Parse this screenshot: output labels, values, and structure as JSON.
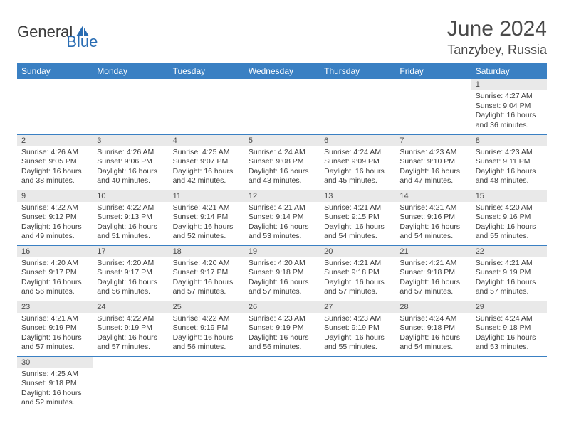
{
  "brand": {
    "general": "General",
    "blue": "Blue"
  },
  "title": {
    "month": "June 2024",
    "location": "Tanzybey, Russia"
  },
  "colors": {
    "header_bg": "#3a80c3",
    "rule": "#3a80c3",
    "daynum_bg": "#e9e9e9"
  },
  "headers": [
    "Sunday",
    "Monday",
    "Tuesday",
    "Wednesday",
    "Thursday",
    "Friday",
    "Saturday"
  ],
  "weeks": [
    [
      null,
      null,
      null,
      null,
      null,
      null,
      {
        "n": "1",
        "sr": "Sunrise: 4:27 AM",
        "ss": "Sunset: 9:04 PM",
        "dl": "Daylight: 16 hours and 36 minutes."
      }
    ],
    [
      {
        "n": "2",
        "sr": "Sunrise: 4:26 AM",
        "ss": "Sunset: 9:05 PM",
        "dl": "Daylight: 16 hours and 38 minutes."
      },
      {
        "n": "3",
        "sr": "Sunrise: 4:26 AM",
        "ss": "Sunset: 9:06 PM",
        "dl": "Daylight: 16 hours and 40 minutes."
      },
      {
        "n": "4",
        "sr": "Sunrise: 4:25 AM",
        "ss": "Sunset: 9:07 PM",
        "dl": "Daylight: 16 hours and 42 minutes."
      },
      {
        "n": "5",
        "sr": "Sunrise: 4:24 AM",
        "ss": "Sunset: 9:08 PM",
        "dl": "Daylight: 16 hours and 43 minutes."
      },
      {
        "n": "6",
        "sr": "Sunrise: 4:24 AM",
        "ss": "Sunset: 9:09 PM",
        "dl": "Daylight: 16 hours and 45 minutes."
      },
      {
        "n": "7",
        "sr": "Sunrise: 4:23 AM",
        "ss": "Sunset: 9:10 PM",
        "dl": "Daylight: 16 hours and 47 minutes."
      },
      {
        "n": "8",
        "sr": "Sunrise: 4:23 AM",
        "ss": "Sunset: 9:11 PM",
        "dl": "Daylight: 16 hours and 48 minutes."
      }
    ],
    [
      {
        "n": "9",
        "sr": "Sunrise: 4:22 AM",
        "ss": "Sunset: 9:12 PM",
        "dl": "Daylight: 16 hours and 49 minutes."
      },
      {
        "n": "10",
        "sr": "Sunrise: 4:22 AM",
        "ss": "Sunset: 9:13 PM",
        "dl": "Daylight: 16 hours and 51 minutes."
      },
      {
        "n": "11",
        "sr": "Sunrise: 4:21 AM",
        "ss": "Sunset: 9:14 PM",
        "dl": "Daylight: 16 hours and 52 minutes."
      },
      {
        "n": "12",
        "sr": "Sunrise: 4:21 AM",
        "ss": "Sunset: 9:14 PM",
        "dl": "Daylight: 16 hours and 53 minutes."
      },
      {
        "n": "13",
        "sr": "Sunrise: 4:21 AM",
        "ss": "Sunset: 9:15 PM",
        "dl": "Daylight: 16 hours and 54 minutes."
      },
      {
        "n": "14",
        "sr": "Sunrise: 4:21 AM",
        "ss": "Sunset: 9:16 PM",
        "dl": "Daylight: 16 hours and 54 minutes."
      },
      {
        "n": "15",
        "sr": "Sunrise: 4:20 AM",
        "ss": "Sunset: 9:16 PM",
        "dl": "Daylight: 16 hours and 55 minutes."
      }
    ],
    [
      {
        "n": "16",
        "sr": "Sunrise: 4:20 AM",
        "ss": "Sunset: 9:17 PM",
        "dl": "Daylight: 16 hours and 56 minutes."
      },
      {
        "n": "17",
        "sr": "Sunrise: 4:20 AM",
        "ss": "Sunset: 9:17 PM",
        "dl": "Daylight: 16 hours and 56 minutes."
      },
      {
        "n": "18",
        "sr": "Sunrise: 4:20 AM",
        "ss": "Sunset: 9:17 PM",
        "dl": "Daylight: 16 hours and 57 minutes."
      },
      {
        "n": "19",
        "sr": "Sunrise: 4:20 AM",
        "ss": "Sunset: 9:18 PM",
        "dl": "Daylight: 16 hours and 57 minutes."
      },
      {
        "n": "20",
        "sr": "Sunrise: 4:21 AM",
        "ss": "Sunset: 9:18 PM",
        "dl": "Daylight: 16 hours and 57 minutes."
      },
      {
        "n": "21",
        "sr": "Sunrise: 4:21 AM",
        "ss": "Sunset: 9:18 PM",
        "dl": "Daylight: 16 hours and 57 minutes."
      },
      {
        "n": "22",
        "sr": "Sunrise: 4:21 AM",
        "ss": "Sunset: 9:19 PM",
        "dl": "Daylight: 16 hours and 57 minutes."
      }
    ],
    [
      {
        "n": "23",
        "sr": "Sunrise: 4:21 AM",
        "ss": "Sunset: 9:19 PM",
        "dl": "Daylight: 16 hours and 57 minutes."
      },
      {
        "n": "24",
        "sr": "Sunrise: 4:22 AM",
        "ss": "Sunset: 9:19 PM",
        "dl": "Daylight: 16 hours and 57 minutes."
      },
      {
        "n": "25",
        "sr": "Sunrise: 4:22 AM",
        "ss": "Sunset: 9:19 PM",
        "dl": "Daylight: 16 hours and 56 minutes."
      },
      {
        "n": "26",
        "sr": "Sunrise: 4:23 AM",
        "ss": "Sunset: 9:19 PM",
        "dl": "Daylight: 16 hours and 56 minutes."
      },
      {
        "n": "27",
        "sr": "Sunrise: 4:23 AM",
        "ss": "Sunset: 9:19 PM",
        "dl": "Daylight: 16 hours and 55 minutes."
      },
      {
        "n": "28",
        "sr": "Sunrise: 4:24 AM",
        "ss": "Sunset: 9:18 PM",
        "dl": "Daylight: 16 hours and 54 minutes."
      },
      {
        "n": "29",
        "sr": "Sunrise: 4:24 AM",
        "ss": "Sunset: 9:18 PM",
        "dl": "Daylight: 16 hours and 53 minutes."
      }
    ],
    [
      {
        "n": "30",
        "sr": "Sunrise: 4:25 AM",
        "ss": "Sunset: 9:18 PM",
        "dl": "Daylight: 16 hours and 52 minutes."
      },
      null,
      null,
      null,
      null,
      null,
      null
    ]
  ]
}
